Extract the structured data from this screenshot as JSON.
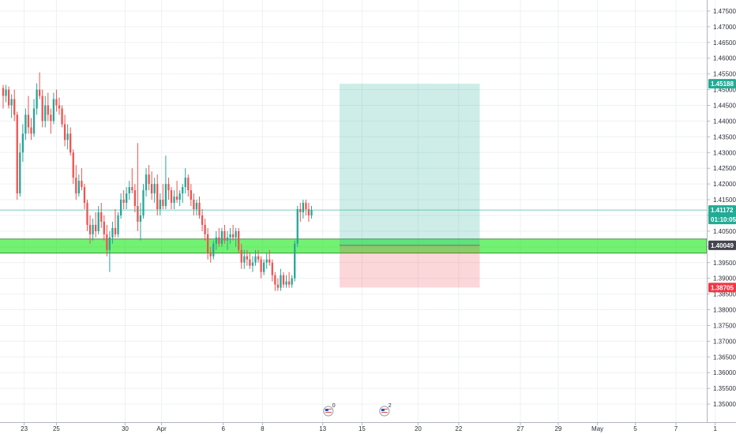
{
  "chart_data": {
    "type": "candlestick",
    "title": "",
    "xlabel": "",
    "ylabel": "",
    "ylim": [
      1.345,
      1.4775
    ],
    "grid": true,
    "y_ticks": [
      1.35,
      1.355,
      1.36,
      1.365,
      1.37,
      1.375,
      1.38,
      1.385,
      1.39,
      1.395,
      1.4,
      1.405,
      1.41,
      1.415,
      1.42,
      1.425,
      1.43,
      1.435,
      1.44,
      1.445,
      1.45,
      1.455,
      1.46,
      1.465,
      1.47,
      1.475
    ],
    "y_tick_labels": [
      "1.35000",
      "1.35500",
      "1.36000",
      "1.36500",
      "1.37000",
      "1.37500",
      "1.38000",
      "1.38500",
      "1.39000",
      "1.39500",
      "1.40000",
      "1.40500",
      "1.41000",
      "1.41500",
      "1.42000",
      "1.42500",
      "1.43000",
      "1.43500",
      "1.44000",
      "1.44500",
      "1.45000",
      "1.45500",
      "1.46000",
      "1.46500",
      "1.47000",
      "1.47500"
    ],
    "x_ticks": [
      {
        "label": "23",
        "bar": 7.5
      },
      {
        "label": "25",
        "bar": 19
      },
      {
        "label": "30",
        "bar": 43.5
      },
      {
        "label": "Apr",
        "bar": 56.5
      },
      {
        "label": "6",
        "bar": 78.5
      },
      {
        "label": "8",
        "bar": 92.5
      },
      {
        "label": "13",
        "bar": 114
      },
      {
        "label": "15",
        "bar": 128
      },
      {
        "label": "20",
        "bar": 148
      },
      {
        "label": "22",
        "bar": 162.5
      },
      {
        "label": "27",
        "bar": 184.5
      },
      {
        "label": "29",
        "bar": 198
      },
      {
        "label": "May",
        "bar": 212
      },
      {
        "label": "5",
        "bar": 225.5
      },
      {
        "label": "7",
        "bar": 240
      },
      {
        "label": "1",
        "bar": 254
      }
    ],
    "candles_ohlc": [
      [
        1.4505,
        1.4515,
        1.444,
        1.448
      ],
      [
        1.448,
        1.4515,
        1.446,
        1.45
      ],
      [
        1.45,
        1.451,
        1.444,
        1.445
      ],
      [
        1.445,
        1.4485,
        1.441,
        1.447
      ],
      [
        1.447,
        1.45,
        1.44,
        1.442
      ],
      [
        1.442,
        1.443,
        1.415,
        1.417
      ],
      [
        1.417,
        1.433,
        1.416,
        1.43
      ],
      [
        1.43,
        1.439,
        1.427,
        1.436
      ],
      [
        1.436,
        1.444,
        1.434,
        1.442
      ],
      [
        1.442,
        1.448,
        1.436,
        1.438
      ],
      [
        1.438,
        1.441,
        1.434,
        1.436
      ],
      [
        1.436,
        1.447,
        1.435,
        1.444
      ],
      [
        1.444,
        1.452,
        1.442,
        1.45
      ],
      [
        1.45,
        1.4555,
        1.447,
        1.448
      ],
      [
        1.448,
        1.45,
        1.438,
        1.44
      ],
      [
        1.44,
        1.448,
        1.438,
        1.445
      ],
      [
        1.445,
        1.449,
        1.44,
        1.442
      ],
      [
        1.442,
        1.444,
        1.436,
        1.44
      ],
      [
        1.44,
        1.449,
        1.439,
        1.447
      ],
      [
        1.447,
        1.45,
        1.443,
        1.445
      ],
      [
        1.445,
        1.4475,
        1.442,
        1.444
      ],
      [
        1.444,
        1.445,
        1.438,
        1.439
      ],
      [
        1.439,
        1.442,
        1.432,
        1.434
      ],
      [
        1.434,
        1.439,
        1.431,
        1.436
      ],
      [
        1.436,
        1.438,
        1.429,
        1.43
      ],
      [
        1.43,
        1.431,
        1.42,
        1.422
      ],
      [
        1.422,
        1.426,
        1.415,
        1.417
      ],
      [
        1.417,
        1.423,
        1.416,
        1.421
      ],
      [
        1.421,
        1.425,
        1.418,
        1.419
      ],
      [
        1.419,
        1.42,
        1.412,
        1.414
      ],
      [
        1.414,
        1.415,
        1.405,
        1.407
      ],
      [
        1.407,
        1.41,
        1.401,
        1.404
      ],
      [
        1.404,
        1.409,
        1.402,
        1.407
      ],
      [
        1.407,
        1.411,
        1.403,
        1.405
      ],
      [
        1.405,
        1.413,
        1.404,
        1.411
      ],
      [
        1.411,
        1.414,
        1.406,
        1.408
      ],
      [
        1.408,
        1.41,
        1.402,
        1.404
      ],
      [
        1.404,
        1.407,
        1.397,
        1.399
      ],
      [
        1.399,
        1.405,
        1.392,
        1.403
      ],
      [
        1.403,
        1.408,
        1.401,
        1.406
      ],
      [
        1.406,
        1.412,
        1.403,
        1.404
      ],
      [
        1.404,
        1.411,
        1.403,
        1.41
      ],
      [
        1.41,
        1.417,
        1.409,
        1.415
      ],
      [
        1.415,
        1.418,
        1.412,
        1.414
      ],
      [
        1.414,
        1.419,
        1.412,
        1.417
      ],
      [
        1.417,
        1.421,
        1.415,
        1.419
      ],
      [
        1.419,
        1.425,
        1.417,
        1.418
      ],
      [
        1.418,
        1.42,
        1.411,
        1.413
      ],
      [
        1.413,
        1.433,
        1.405,
        1.408
      ],
      [
        1.408,
        1.414,
        1.402,
        1.41
      ],
      [
        1.41,
        1.42,
        1.409,
        1.418
      ],
      [
        1.418,
        1.425,
        1.416,
        1.423
      ],
      [
        1.423,
        1.426,
        1.418,
        1.42
      ],
      [
        1.42,
        1.424,
        1.415,
        1.417
      ],
      [
        1.417,
        1.422,
        1.414,
        1.42
      ],
      [
        1.42,
        1.423,
        1.41,
        1.412
      ],
      [
        1.412,
        1.417,
        1.41,
        1.415
      ],
      [
        1.415,
        1.42,
        1.412,
        1.413
      ],
      [
        1.413,
        1.429,
        1.412,
        1.42
      ],
      [
        1.42,
        1.422,
        1.415,
        1.418
      ],
      [
        1.418,
        1.419,
        1.412,
        1.414
      ],
      [
        1.414,
        1.418,
        1.412,
        1.416
      ],
      [
        1.416,
        1.421,
        1.414,
        1.415
      ],
      [
        1.415,
        1.418,
        1.413,
        1.417
      ],
      [
        1.417,
        1.42,
        1.414,
        1.419
      ],
      [
        1.419,
        1.425,
        1.417,
        1.422
      ],
      [
        1.422,
        1.423,
        1.416,
        1.418
      ],
      [
        1.418,
        1.42,
        1.413,
        1.415
      ],
      [
        1.415,
        1.417,
        1.41,
        1.412
      ],
      [
        1.412,
        1.415,
        1.41,
        1.414
      ],
      [
        1.414,
        1.416,
        1.409,
        1.41
      ],
      [
        1.41,
        1.412,
        1.405,
        1.407
      ],
      [
        1.407,
        1.409,
        1.402,
        1.404
      ],
      [
        1.404,
        1.406,
        1.396,
        1.398
      ],
      [
        1.398,
        1.4,
        1.395,
        1.397
      ],
      [
        1.397,
        1.402,
        1.396,
        1.401
      ],
      [
        1.401,
        1.405,
        1.399,
        1.403
      ],
      [
        1.403,
        1.406,
        1.4,
        1.401
      ],
      [
        1.401,
        1.406,
        1.4,
        1.405
      ],
      [
        1.405,
        1.407,
        1.401,
        1.402
      ],
      [
        1.402,
        1.405,
        1.399,
        1.403
      ],
      [
        1.403,
        1.406,
        1.401,
        1.404
      ],
      [
        1.404,
        1.407,
        1.402,
        1.403
      ],
      [
        1.403,
        1.406,
        1.4,
        1.405
      ],
      [
        1.405,
        1.406,
        1.398,
        1.399
      ],
      [
        1.399,
        1.401,
        1.393,
        1.395
      ],
      [
        1.395,
        1.399,
        1.393,
        1.397
      ],
      [
        1.397,
        1.399,
        1.394,
        1.396
      ],
      [
        1.396,
        1.398,
        1.393,
        1.394
      ],
      [
        1.394,
        1.397,
        1.392,
        1.395
      ],
      [
        1.395,
        1.399,
        1.394,
        1.397
      ],
      [
        1.397,
        1.399,
        1.395,
        1.396
      ],
      [
        1.396,
        1.397,
        1.39,
        1.392
      ],
      [
        1.392,
        1.396,
        1.391,
        1.395
      ],
      [
        1.395,
        1.398,
        1.393,
        1.396
      ],
      [
        1.396,
        1.399,
        1.394,
        1.395
      ],
      [
        1.395,
        1.396,
        1.389,
        1.391
      ],
      [
        1.391,
        1.392,
        1.386,
        1.388
      ],
      [
        1.388,
        1.39,
        1.386,
        1.387
      ],
      [
        1.387,
        1.393,
        1.386,
        1.391
      ],
      [
        1.391,
        1.392,
        1.387,
        1.388
      ],
      [
        1.388,
        1.391,
        1.387,
        1.389
      ],
      [
        1.389,
        1.392,
        1.387,
        1.388
      ],
      [
        1.388,
        1.391,
        1.387,
        1.39
      ],
      [
        1.39,
        1.402,
        1.389,
        1.401
      ],
      [
        1.401,
        1.413,
        1.4,
        1.412
      ],
      [
        1.412,
        1.414,
        1.408,
        1.411
      ],
      [
        1.411,
        1.415,
        1.409,
        1.414
      ],
      [
        1.414,
        1.415,
        1.41,
        1.412
      ],
      [
        1.412,
        1.414,
        1.408,
        1.41
      ],
      [
        1.41,
        1.413,
        1.409,
        1.4117
      ]
    ],
    "support_zone": {
      "from_bar": -2,
      "to_bar": 258,
      "low": 1.398,
      "high": 1.4025,
      "color": "#00e600"
    },
    "position": {
      "from_bar": 120,
      "to_bar": 170,
      "entry": 1.40049,
      "target": 1.45188,
      "stop": 1.38705,
      "profit_color": "#22ab94",
      "loss_color": "#f23645"
    },
    "current_price": 1.41172,
    "price_tags": [
      {
        "label": "1.45188",
        "value": 1.45188,
        "color": "#22ab94"
      },
      {
        "label": "1.41172",
        "value": 1.41172,
        "color": "#22ab94",
        "sub": "01:10:05"
      },
      {
        "label": "1.40049",
        "value": 1.40049,
        "color": "#434651"
      },
      {
        "label": "1.38705",
        "value": 1.38705,
        "color": "#f23645"
      }
    ],
    "events": [
      {
        "bar": 116,
        "count": "0"
      },
      {
        "bar": 136,
        "count": "2"
      }
    ],
    "colors": {
      "up": "#26a69a",
      "down": "#ef5350",
      "grid": "#eef0f3",
      "axis": "#2a2e39"
    }
  }
}
